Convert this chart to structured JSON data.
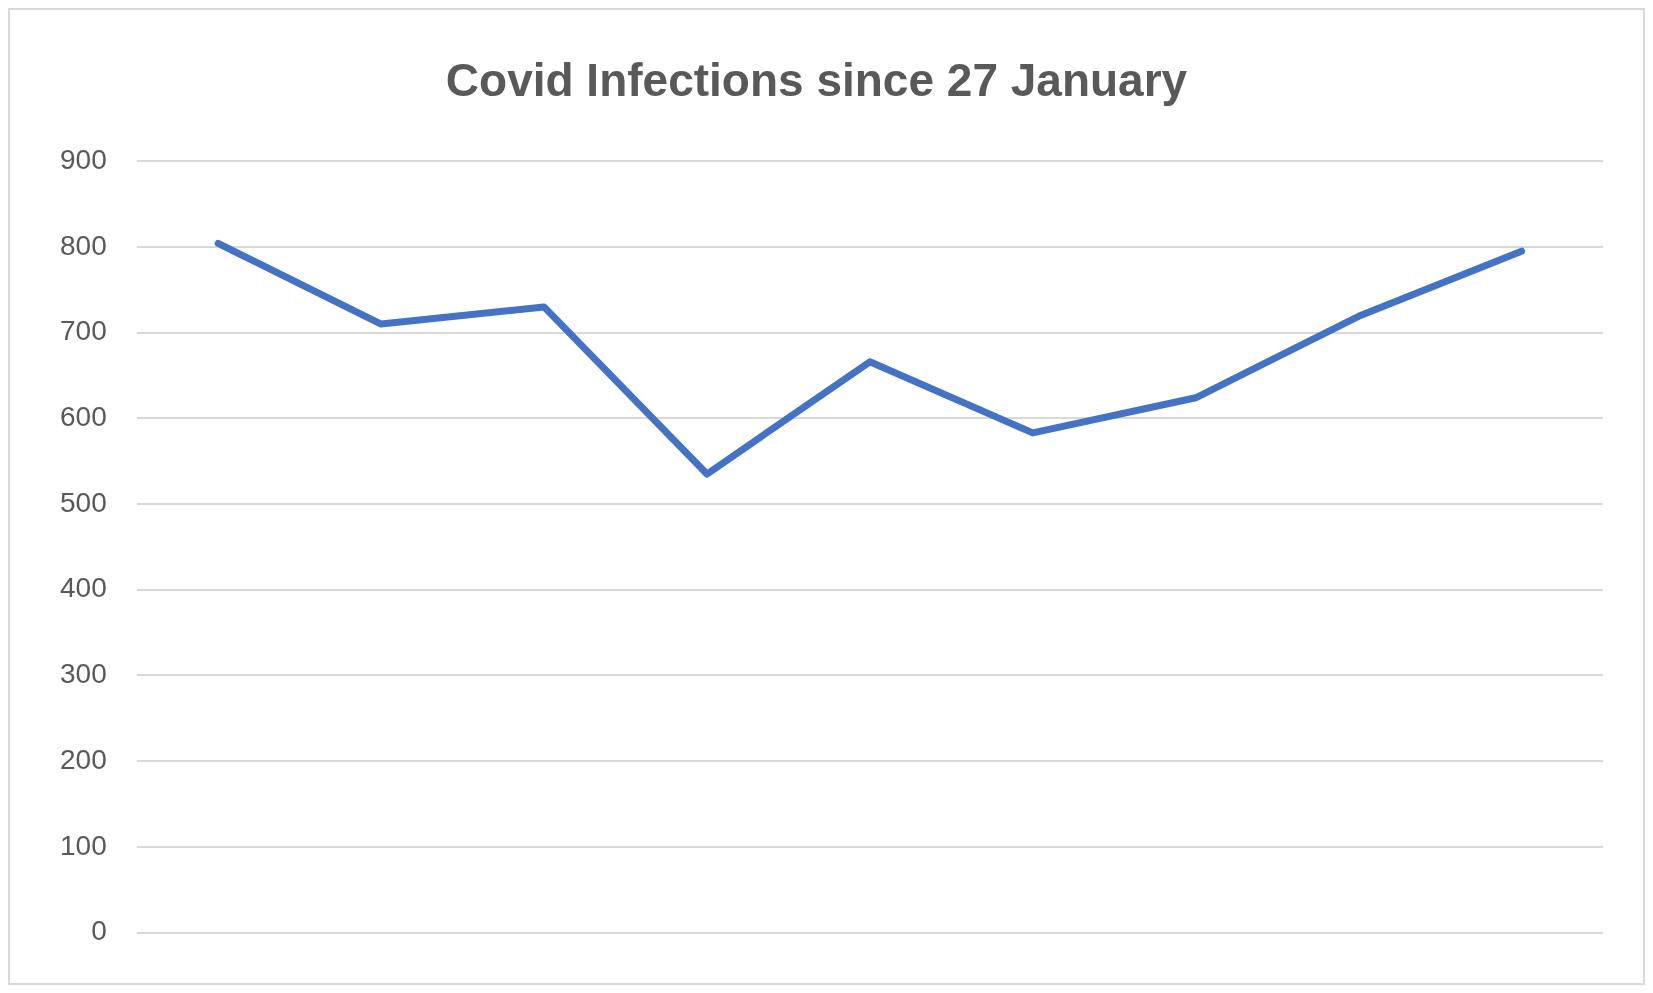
{
  "chart_data": {
    "type": "line",
    "title": "Covid Infections since 27 January",
    "categories": [
      null,
      null,
      null,
      null,
      null,
      null,
      null,
      null,
      null
    ],
    "series": [
      {
        "color": "#4472c4",
        "values": [
          804,
          710,
          730,
          535,
          666,
          583,
          624,
          719,
          795
        ]
      }
    ],
    "ylim": [
      0,
      900
    ],
    "yticks": [
      0,
      100,
      200,
      300,
      400,
      500,
      600,
      700,
      800,
      900
    ],
    "grid": "y",
    "legend": false,
    "marker": "none"
  }
}
